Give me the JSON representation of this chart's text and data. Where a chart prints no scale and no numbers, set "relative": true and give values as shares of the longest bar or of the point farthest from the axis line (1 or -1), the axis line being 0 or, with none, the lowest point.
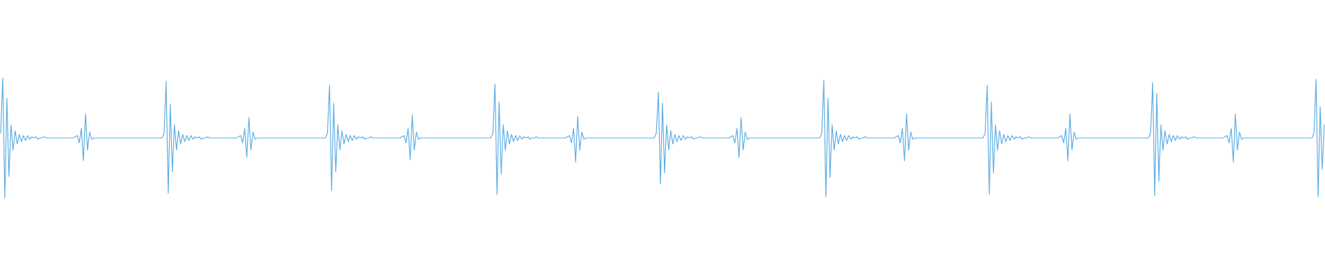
{
  "chart_data": {
    "type": "line",
    "relative": true,
    "color": "#5dade2",
    "marker": "none",
    "categories": [
      null,
      null,
      null,
      null,
      null,
      null,
      null,
      null,
      null,
      null,
      null,
      null,
      null,
      null,
      null,
      null,
      null,
      null,
      null,
      null,
      null,
      null,
      null,
      null,
      null,
      null,
      null,
      null,
      null,
      null,
      null,
      null,
      null,
      null,
      null,
      null,
      null,
      null,
      null,
      null,
      null,
      null,
      null,
      null,
      null,
      null,
      null,
      null,
      null,
      null,
      null,
      null,
      null,
      null,
      null,
      null,
      null,
      null,
      null,
      null,
      null,
      null,
      null,
      null,
      null,
      null,
      null,
      null,
      null,
      null,
      null,
      null,
      null,
      null,
      null,
      null,
      null,
      null,
      null,
      null,
      null,
      null,
      null,
      null,
      null,
      null,
      null,
      null,
      null,
      null,
      null,
      null,
      null,
      null,
      null,
      null,
      null,
      null,
      null,
      null,
      null,
      null,
      null,
      null,
      null,
      null,
      null,
      null,
      null,
      null,
      null,
      null,
      null,
      null,
      null,
      null,
      null,
      null,
      null,
      null,
      null,
      null,
      null,
      null,
      null,
      null,
      null,
      null,
      null,
      null,
      null,
      null,
      null,
      null,
      null,
      null,
      null,
      null,
      null,
      null,
      null,
      null,
      null,
      null,
      null,
      null,
      null,
      null,
      null,
      null,
      null,
      null,
      null,
      null,
      null,
      null,
      null,
      null,
      null,
      null,
      null,
      null,
      null,
      null,
      null,
      null,
      null,
      null,
      null,
      null,
      null,
      null,
      null,
      null,
      null,
      null,
      null,
      null,
      null,
      null,
      null,
      null,
      null,
      null,
      null,
      null,
      null,
      null,
      null,
      null,
      null,
      null,
      null,
      null,
      null,
      null,
      null,
      null,
      null,
      null,
      null,
      null,
      null,
      null,
      null,
      null,
      null,
      null,
      null,
      null,
      null,
      null,
      null,
      null,
      null,
      null,
      null,
      null,
      null,
      null,
      null,
      null,
      null,
      null,
      null,
      null,
      null,
      null,
      null,
      null,
      null,
      null,
      null,
      null,
      null,
      null,
      null,
      null,
      null,
      null,
      null,
      null,
      null,
      null,
      null,
      null,
      null,
      null,
      null,
      null,
      null,
      null,
      null,
      null,
      null,
      null,
      null,
      null,
      null,
      null,
      null,
      null,
      null,
      null,
      null,
      null,
      null,
      null,
      null,
      null,
      null,
      null,
      null,
      null,
      null,
      null,
      null,
      null,
      null,
      null,
      null,
      null,
      null,
      null,
      null,
      null,
      null,
      null,
      null,
      null,
      null,
      null,
      null,
      null,
      null,
      null,
      null,
      null,
      null,
      null,
      null,
      null,
      null,
      null,
      null,
      null,
      null,
      null,
      null,
      null,
      null,
      null,
      null,
      null,
      null,
      null,
      null,
      null,
      null,
      null,
      null,
      null,
      null,
      null,
      null,
      null,
      null,
      null,
      null,
      null,
      null,
      null,
      null,
      null,
      null,
      null,
      null,
      null,
      null,
      null,
      null,
      null,
      null,
      null,
      null,
      null,
      null,
      null,
      null,
      null,
      null,
      null,
      null,
      null,
      null,
      null,
      null,
      null,
      null,
      null,
      null,
      null,
      null,
      null,
      null,
      null,
      null,
      null,
      null,
      null,
      null,
      null,
      null,
      null,
      null,
      null,
      null,
      null,
      null,
      null,
      null,
      null,
      null,
      null,
      null,
      null,
      null,
      null,
      null,
      null,
      null,
      null,
      null,
      null,
      null,
      null,
      null,
      null,
      null,
      null,
      null,
      null,
      null,
      null,
      null,
      null,
      null,
      null,
      null,
      null,
      null,
      null,
      null,
      null,
      null,
      null,
      null,
      null,
      null,
      null,
      null,
      null,
      null,
      null,
      null,
      null,
      null,
      null,
      null,
      null,
      null,
      null,
      null,
      null,
      null,
      null,
      null,
      null,
      null,
      null,
      null,
      null,
      null,
      null,
      null,
      null,
      null,
      null,
      null,
      null,
      null,
      null,
      null,
      null,
      null,
      null,
      null,
      null,
      null,
      null,
      null,
      null,
      null,
      null,
      null,
      null,
      null,
      null,
      null,
      null,
      null,
      null,
      null,
      null,
      null,
      null,
      null,
      null,
      null,
      null,
      null,
      null,
      null,
      null,
      null,
      null,
      null,
      null,
      null,
      null,
      null,
      null,
      null,
      null,
      null,
      null,
      null,
      null,
      null,
      null,
      null,
      null,
      null,
      null,
      null,
      null,
      null,
      null,
      null,
      null,
      null,
      null,
      null,
      null,
      null,
      null,
      null,
      null,
      null,
      null,
      null,
      null,
      null,
      null,
      null,
      null,
      null,
      null,
      null,
      null,
      null,
      null,
      null,
      null,
      null,
      null,
      null,
      null,
      null,
      null,
      null,
      null,
      null,
      null,
      null,
      null,
      null,
      null,
      null,
      null,
      null,
      null,
      null,
      null,
      null,
      null,
      null,
      null,
      null,
      null,
      null,
      null,
      null,
      null,
      null,
      null,
      null,
      null,
      null,
      null,
      null,
      null,
      null,
      null,
      null,
      null,
      null,
      null,
      null,
      null,
      null,
      null,
      null,
      null,
      null,
      null,
      null,
      null,
      null,
      null,
      null,
      null,
      null,
      null,
      null,
      null,
      null,
      null,
      null,
      null,
      null,
      null,
      null,
      null,
      null,
      null,
      null,
      null,
      null,
      null,
      null,
      null,
      null,
      null,
      null,
      null,
      null,
      null,
      null,
      null,
      null,
      null,
      null,
      null,
      null,
      null,
      null,
      null,
      null,
      null,
      null,
      null,
      null,
      null,
      null,
      null,
      null,
      null,
      null,
      null,
      null
    ],
    "values": [
      0.54,
      1.0,
      0.0,
      0.83,
      0.18,
      0.61,
      0.4,
      0.56,
      0.45,
      0.53,
      0.47,
      0.52,
      0.48,
      0.52,
      0.49,
      0.51,
      0.5,
      0.51,
      0.49,
      0.5,
      0.5,
      0.51,
      0.5,
      0.5,
      0.5,
      0.5,
      0.5,
      0.5,
      0.5,
      0.5,
      0.5,
      0.5,
      0.5,
      0.5,
      0.5,
      0.5,
      0.51,
      0.52,
      0.46,
      0.58,
      0.31,
      0.7,
      0.4,
      0.55,
      0.49,
      0.5,
      0.5,
      0.5,
      0.5,
      0.5,
      0.5,
      0.5,
      0.5,
      0.5,
      0.5,
      0.5,
      0.5,
      0.5,
      0.5,
      0.5,
      0.5,
      0.5,
      0.5,
      0.5,
      0.5,
      0.5,
      0.5,
      0.5,
      0.5,
      0.5,
      0.5,
      0.5,
      0.5,
      0.5,
      0.5,
      0.5,
      0.5,
      0.5,
      0.5,
      0.54,
      0.97,
      0.04,
      0.78,
      0.22,
      0.61,
      0.4,
      0.56,
      0.45,
      0.53,
      0.47,
      0.52,
      0.48,
      0.52,
      0.49,
      0.51,
      0.5,
      0.51,
      0.49,
      0.5,
      0.5,
      0.51,
      0.5,
      0.5,
      0.5,
      0.5,
      0.5,
      0.5,
      0.5,
      0.5,
      0.5,
      0.5,
      0.5,
      0.5,
      0.5,
      0.5,
      0.51,
      0.52,
      0.46,
      0.58,
      0.34,
      0.67,
      0.4,
      0.55,
      0.49,
      0.5,
      0.5,
      0.5,
      0.5,
      0.5,
      0.5,
      0.5,
      0.5,
      0.5,
      0.5,
      0.5,
      0.5,
      0.5,
      0.5,
      0.5,
      0.5,
      0.5,
      0.5,
      0.5,
      0.5,
      0.5,
      0.5,
      0.5,
      0.5,
      0.5,
      0.5,
      0.5,
      0.5,
      0.5,
      0.5,
      0.5,
      0.5,
      0.5,
      0.5,
      0.54,
      0.94,
      0.06,
      0.79,
      0.22,
      0.61,
      0.4,
      0.56,
      0.45,
      0.53,
      0.47,
      0.52,
      0.48,
      0.52,
      0.49,
      0.51,
      0.5,
      0.51,
      0.49,
      0.5,
      0.5,
      0.51,
      0.5,
      0.5,
      0.5,
      0.5,
      0.5,
      0.5,
      0.5,
      0.5,
      0.5,
      0.5,
      0.5,
      0.5,
      0.5,
      0.5,
      0.51,
      0.52,
      0.46,
      0.58,
      0.32,
      0.69,
      0.4,
      0.55,
      0.49,
      0.5,
      0.5,
      0.5,
      0.5,
      0.5,
      0.5,
      0.5,
      0.5,
      0.5,
      0.5,
      0.5,
      0.5,
      0.5,
      0.5,
      0.5,
      0.5,
      0.5,
      0.5,
      0.5,
      0.5,
      0.5,
      0.5,
      0.5,
      0.5,
      0.5,
      0.5,
      0.5,
      0.5,
      0.5,
      0.5,
      0.5,
      0.5,
      0.5,
      0.5,
      0.5,
      0.54,
      0.95,
      0.03,
      0.8,
      0.2,
      0.61,
      0.4,
      0.56,
      0.45,
      0.53,
      0.47,
      0.52,
      0.48,
      0.52,
      0.49,
      0.51,
      0.5,
      0.51,
      0.49,
      0.5,
      0.5,
      0.51,
      0.5,
      0.5,
      0.5,
      0.5,
      0.5,
      0.5,
      0.5,
      0.5,
      0.5,
      0.5,
      0.5,
      0.5,
      0.5,
      0.5,
      0.51,
      0.52,
      0.46,
      0.58,
      0.3,
      0.68,
      0.4,
      0.55,
      0.49,
      0.5,
      0.5,
      0.5,
      0.5,
      0.5,
      0.5,
      0.5,
      0.5,
      0.5,
      0.5,
      0.5,
      0.5,
      0.5,
      0.5,
      0.5,
      0.5,
      0.5,
      0.5,
      0.5,
      0.5,
      0.5,
      0.5,
      0.5,
      0.5,
      0.5,
      0.5,
      0.5,
      0.5,
      0.5,
      0.5,
      0.5,
      0.5,
      0.5,
      0.5,
      0.54,
      0.88,
      0.12,
      0.79,
      0.21,
      0.61,
      0.4,
      0.56,
      0.45,
      0.53,
      0.47,
      0.52,
      0.48,
      0.52,
      0.49,
      0.51,
      0.5,
      0.51,
      0.49,
      0.5,
      0.5,
      0.51,
      0.5,
      0.5,
      0.5,
      0.5,
      0.5,
      0.5,
      0.5,
      0.5,
      0.5,
      0.5,
      0.5,
      0.5,
      0.5,
      0.5,
      0.51,
      0.52,
      0.46,
      0.58,
      0.34,
      0.67,
      0.4,
      0.55,
      0.49,
      0.5,
      0.5,
      0.5,
      0.5,
      0.5,
      0.5,
      0.5,
      0.5,
      0.5,
      0.5,
      0.5,
      0.5,
      0.5,
      0.5,
      0.5,
      0.5,
      0.5,
      0.5,
      0.5,
      0.5,
      0.5,
      0.5,
      0.5,
      0.5,
      0.5,
      0.5,
      0.5,
      0.5,
      0.5,
      0.5,
      0.5,
      0.5,
      0.5,
      0.5,
      0.5,
      0.54,
      0.98,
      0.01,
      0.83,
      0.17,
      0.61,
      0.4,
      0.56,
      0.45,
      0.53,
      0.47,
      0.52,
      0.48,
      0.52,
      0.49,
      0.51,
      0.5,
      0.51,
      0.49,
      0.5,
      0.5,
      0.51,
      0.5,
      0.5,
      0.5,
      0.5,
      0.5,
      0.5,
      0.5,
      0.5,
      0.5,
      0.5,
      0.5,
      0.5,
      0.5,
      0.5,
      0.51,
      0.52,
      0.46,
      0.58,
      0.31,
      0.7,
      0.4,
      0.55,
      0.49,
      0.5,
      0.5,
      0.5,
      0.5,
      0.5,
      0.5,
      0.5,
      0.5,
      0.5,
      0.5,
      0.5,
      0.5,
      0.5,
      0.5,
      0.5,
      0.5,
      0.5,
      0.5,
      0.5,
      0.5,
      0.5,
      0.5,
      0.5,
      0.5,
      0.5,
      0.5,
      0.5,
      0.5,
      0.5,
      0.5,
      0.5,
      0.5,
      0.5,
      0.5,
      0.54,
      0.94,
      0.03,
      0.8,
      0.21,
      0.61,
      0.4,
      0.56,
      0.45,
      0.53,
      0.47,
      0.52,
      0.48,
      0.52,
      0.49,
      0.51,
      0.5,
      0.51,
      0.49,
      0.5,
      0.5,
      0.51,
      0.5,
      0.5,
      0.5,
      0.5,
      0.5,
      0.5,
      0.5,
      0.5,
      0.5,
      0.5,
      0.5,
      0.5,
      0.5,
      0.5,
      0.51,
      0.52,
      0.46,
      0.58,
      0.31,
      0.7,
      0.4,
      0.55,
      0.49,
      0.5,
      0.5,
      0.5,
      0.5,
      0.5,
      0.5,
      0.5,
      0.5,
      0.5,
      0.5,
      0.5,
      0.5,
      0.5,
      0.5,
      0.5,
      0.5,
      0.5,
      0.5,
      0.5,
      0.5,
      0.5,
      0.5,
      0.5,
      0.5,
      0.5,
      0.5,
      0.5,
      0.5,
      0.5,
      0.5,
      0.5,
      0.5,
      0.5,
      0.5,
      0.5,
      0.54,
      0.96,
      0.02,
      0.87,
      0.14,
      0.61,
      0.4,
      0.56,
      0.45,
      0.53,
      0.47,
      0.52,
      0.48,
      0.52,
      0.49,
      0.51,
      0.5,
      0.51,
      0.49,
      0.5,
      0.5,
      0.51,
      0.5,
      0.5,
      0.5,
      0.5,
      0.5,
      0.5,
      0.5,
      0.5,
      0.5,
      0.5,
      0.5,
      0.5,
      0.5,
      0.5,
      0.51,
      0.52,
      0.46,
      0.58,
      0.3,
      0.7,
      0.4,
      0.55,
      0.49,
      0.5,
      0.5,
      0.5,
      0.5,
      0.5,
      0.5,
      0.5,
      0.5,
      0.5,
      0.5,
      0.5,
      0.5,
      0.5,
      0.5,
      0.5,
      0.5,
      0.5,
      0.5,
      0.5,
      0.5,
      0.5,
      0.5,
      0.5,
      0.5,
      0.5,
      0.5,
      0.5,
      0.5,
      0.5,
      0.5,
      0.5,
      0.5,
      0.5,
      0.5,
      0.54,
      0.99,
      0.01,
      0.76,
      0.24,
      0.61
    ]
  }
}
